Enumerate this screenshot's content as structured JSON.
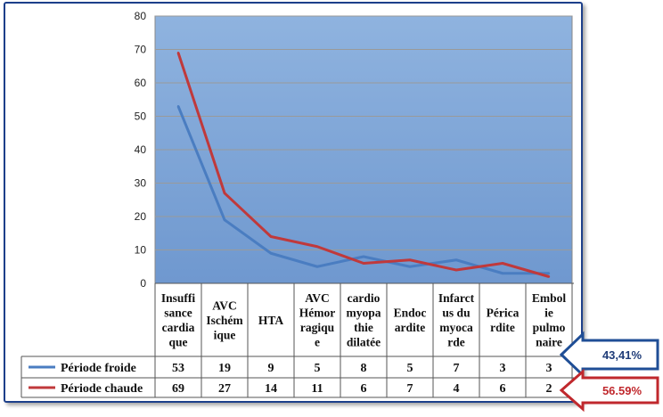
{
  "chart_data": {
    "type": "line",
    "categories": [
      [
        "Insuffi",
        "sance",
        "cardia",
        "que"
      ],
      [
        "AVC",
        "Ischém",
        "ique"
      ],
      [
        "HTA"
      ],
      [
        "AVC",
        "Hémor",
        "ragiqu",
        "e"
      ],
      [
        "cardio",
        "myopa",
        "thie",
        "dilatée"
      ],
      [
        "Endoc",
        "ardite"
      ],
      [
        "Infarct",
        "us du",
        "myoca",
        "rde"
      ],
      [
        "Périca",
        "rdite"
      ],
      [
        "Embol",
        "ie",
        "pulmo",
        "naire"
      ]
    ],
    "series": [
      {
        "name": "Période froide",
        "color": "#4a7dc1",
        "values": [
          53,
          19,
          9,
          5,
          8,
          5,
          7,
          3,
          3
        ]
      },
      {
        "name": "Période chaude",
        "color": "#c0393b",
        "values": [
          69,
          27,
          14,
          11,
          6,
          7,
          4,
          6,
          2
        ]
      }
    ],
    "ylim": [
      0,
      80
    ],
    "yticks": [
      "0",
      "10",
      "20",
      "30",
      "40",
      "50",
      "60",
      "70",
      "80"
    ],
    "grid": true,
    "plot_background": "#7fa6d6",
    "table_below": true
  },
  "callouts": [
    {
      "text": "43,41%",
      "border_color": "#1f4e96",
      "text_color": "#1f3c78"
    },
    {
      "text": "56.59%",
      "border_color": "#c0282d",
      "text_color": "#c0282d"
    }
  ]
}
